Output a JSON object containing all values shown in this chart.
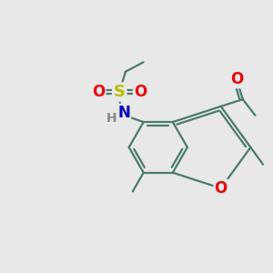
{
  "bg": "#e8e8e8",
  "bond_color": "#4a7a6d",
  "bond_width": 1.6,
  "atom_colors": {
    "O": "#ee0000",
    "S": "#bbbb00",
    "N": "#0000cc",
    "H": "#888888"
  },
  "fs": 10
}
